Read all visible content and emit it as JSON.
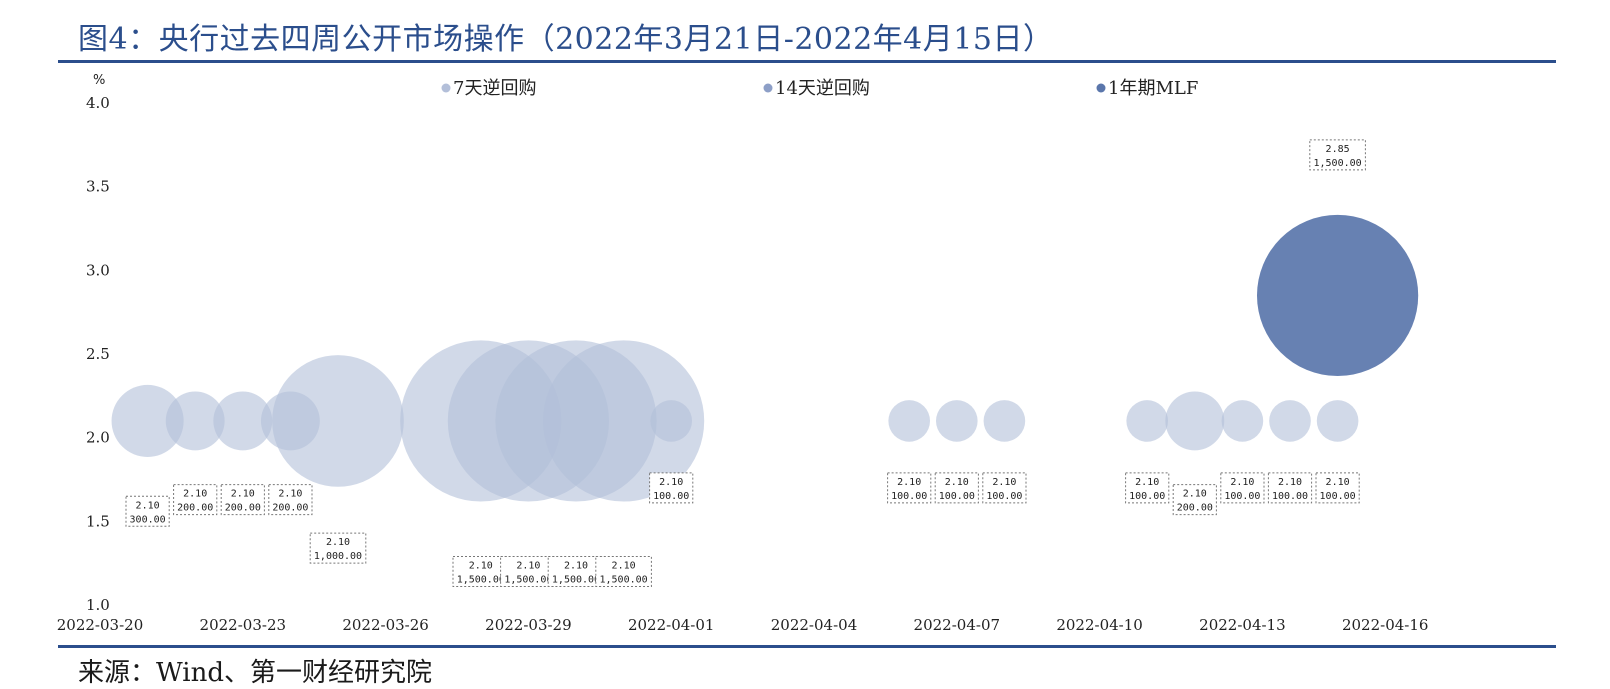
{
  "figure": {
    "title": "图4：央行过去四周公开市场操作（2022年3月21日-2022年4月15日）",
    "source": "来源：Wind、第一财经研究院"
  },
  "colors": {
    "rule": "#2b4e8c",
    "title": "#2b4e8c",
    "series": [
      "#b3bfd9",
      "#8d9fc7",
      "#5a76ab"
    ]
  },
  "chart_data": {
    "type": "bubble",
    "y_unit": "%",
    "ylim": [
      1.0,
      4.0
    ],
    "yticks": [
      "1.0",
      "1.5",
      "2.0",
      "2.5",
      "3.0",
      "3.5",
      "4.0"
    ],
    "xticks": [
      "2022-03-20",
      "2022-03-23",
      "2022-03-26",
      "2022-03-29",
      "2022-04-01",
      "2022-04-04",
      "2022-04-07",
      "2022-04-10",
      "2022-04-13",
      "2022-04-16"
    ],
    "legend_position": "top",
    "bubble_size_field": "amount",
    "series": [
      {
        "name": "7天逆回购",
        "points": [
          {
            "date": "2022-03-21",
            "rate": 2.1,
            "amount": 300
          },
          {
            "date": "2022-03-22",
            "rate": 2.1,
            "amount": 200
          },
          {
            "date": "2022-03-23",
            "rate": 2.1,
            "amount": 200
          },
          {
            "date": "2022-03-24",
            "rate": 2.1,
            "amount": 200
          },
          {
            "date": "2022-03-25",
            "rate": 2.1,
            "amount": 1000
          },
          {
            "date": "2022-03-28",
            "rate": 2.1,
            "amount": 1500
          },
          {
            "date": "2022-03-29",
            "rate": 2.1,
            "amount": 1500
          },
          {
            "date": "2022-03-30",
            "rate": 2.1,
            "amount": 1500
          },
          {
            "date": "2022-03-31",
            "rate": 2.1,
            "amount": 1500
          },
          {
            "date": "2022-04-01",
            "rate": 2.1,
            "amount": 100
          },
          {
            "date": "2022-04-06",
            "rate": 2.1,
            "amount": 100
          },
          {
            "date": "2022-04-07",
            "rate": 2.1,
            "amount": 100
          },
          {
            "date": "2022-04-08",
            "rate": 2.1,
            "amount": 100
          },
          {
            "date": "2022-04-11",
            "rate": 2.1,
            "amount": 100
          },
          {
            "date": "2022-04-12",
            "rate": 2.1,
            "amount": 200
          },
          {
            "date": "2022-04-13",
            "rate": 2.1,
            "amount": 100
          },
          {
            "date": "2022-04-14",
            "rate": 2.1,
            "amount": 100
          },
          {
            "date": "2022-04-15",
            "rate": 2.1,
            "amount": 100
          }
        ]
      },
      {
        "name": "14天逆回购",
        "points": []
      },
      {
        "name": "1年期MLF",
        "points": [
          {
            "date": "2022-04-15",
            "rate": 2.85,
            "amount": 1500
          }
        ]
      }
    ],
    "data_labels": [
      {
        "date": "2022-03-21",
        "rate": "2.10",
        "amount": "300.00",
        "y": 1.56
      },
      {
        "date": "2022-03-22",
        "rate": "2.10",
        "amount": "200.00",
        "y": 1.63
      },
      {
        "date": "2022-03-23",
        "rate": "2.10",
        "amount": "200.00",
        "y": 1.63
      },
      {
        "date": "2022-03-24",
        "rate": "2.10",
        "amount": "200.00",
        "y": 1.63
      },
      {
        "date": "2022-03-25",
        "rate": "2.10",
        "amount": "1,000.00",
        "y": 1.34
      },
      {
        "date": "2022-03-28",
        "rate": "2.10",
        "amount": "1,500.00",
        "y": 1.2
      },
      {
        "date": "2022-03-29",
        "rate": "2.10",
        "amount": "1,500.00",
        "y": 1.2
      },
      {
        "date": "2022-03-30",
        "rate": "2.10",
        "amount": "1,500.00",
        "y": 1.2
      },
      {
        "date": "2022-03-31",
        "rate": "2.10",
        "amount": "1,500.00",
        "y": 1.2
      },
      {
        "date": "2022-04-01",
        "rate": "2.10",
        "amount": "100.00",
        "y": 1.7
      },
      {
        "date": "2022-04-06",
        "rate": "2.10",
        "amount": "100.00",
        "y": 1.7
      },
      {
        "date": "2022-04-07",
        "rate": "2.10",
        "amount": "100.00",
        "y": 1.7
      },
      {
        "date": "2022-04-08",
        "rate": "2.10",
        "amount": "100.00",
        "y": 1.7
      },
      {
        "date": "2022-04-11",
        "rate": "2.10",
        "amount": "100.00",
        "y": 1.7
      },
      {
        "date": "2022-04-12",
        "rate": "2.10",
        "amount": "200.00",
        "y": 1.63
      },
      {
        "date": "2022-04-13",
        "rate": "2.10",
        "amount": "100.00",
        "y": 1.7
      },
      {
        "date": "2022-04-14",
        "rate": "2.10",
        "amount": "100.00",
        "y": 1.7
      },
      {
        "date": "2022-04-15",
        "rate": "2.10",
        "amount": "100.00",
        "y": 1.7
      },
      {
        "date": "2022-04-15",
        "rate": "2.85",
        "amount": "1,500.00",
        "y": 3.69
      }
    ]
  }
}
